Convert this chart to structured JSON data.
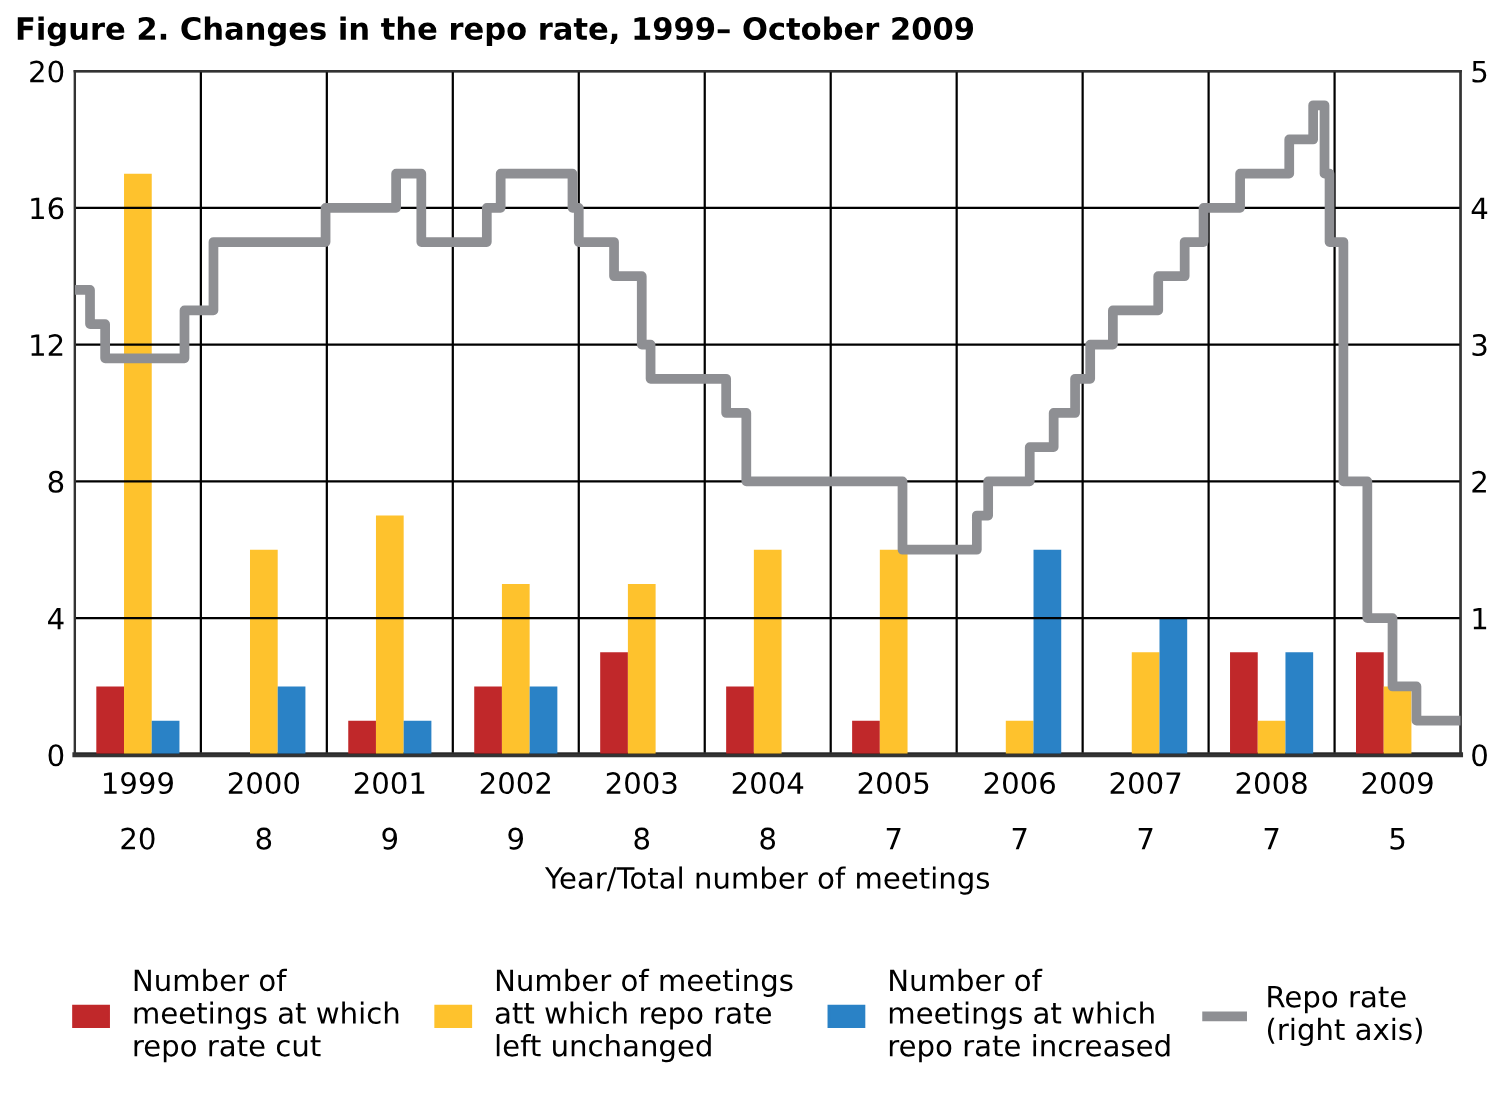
{
  "chart_data": {
    "type": "bar",
    "title": "Figure 2. Changes in the repo rate, 1999– October 2009",
    "xlabel": "Year/Total number of meetings",
    "x": [
      1999,
      2000,
      2001,
      2002,
      2003,
      2004,
      2005,
      2006,
      2007,
      2008,
      2009
    ],
    "series": [
      {
        "name": "Number of\nmeetings at which\nrepo rate cut",
        "color": "#c0282a",
        "values": [
          2,
          0,
          1,
          2,
          3,
          2,
          1,
          0,
          0,
          3,
          3
        ]
      },
      {
        "name": "Number of meetings\natt which repo rate\nleft unchanged",
        "color": "#fec22d",
        "values": [
          17,
          6,
          7,
          5,
          5,
          6,
          6,
          1,
          3,
          1,
          2
        ]
      },
      {
        "name": "Number of\nmeetings at which\nrepo rate increased",
        "color": "#2a82c6",
        "values": [
          1,
          2,
          1,
          2,
          0,
          0,
          0,
          6,
          4,
          3,
          0
        ]
      },
      {
        "name": "Repo rate\n(right axis)",
        "color": "#8e8f93",
        "type": "step",
        "axis": "y2",
        "x": [
          1998.5,
          1998.62,
          1998.74,
          1999.37,
          1999.6,
          2000.49,
          2001.05,
          2001.25,
          2001.77,
          2001.88,
          2002.45,
          2002.5,
          2002.78,
          2003.0,
          2003.07,
          2003.67,
          2003.83,
          2005.07,
          2005.66,
          2005.75,
          2006.08,
          2006.27,
          2006.44,
          2006.56,
          2006.74,
          2007.1,
          2007.31,
          2007.46,
          2007.75,
          2008.14,
          2008.33,
          2008.42,
          2008.46,
          2008.57,
          2008.76,
          2008.96,
          2009.15,
          2009.5
        ],
        "values": [
          3.4,
          3.15,
          2.9,
          3.25,
          3.75,
          4.0,
          4.25,
          3.75,
          4.0,
          4.25,
          4.0,
          3.75,
          3.5,
          3.0,
          2.75,
          2.5,
          2.0,
          1.5,
          1.75,
          2.0,
          2.25,
          2.5,
          2.75,
          3.0,
          3.25,
          3.5,
          3.75,
          4.0,
          4.25,
          4.5,
          4.75,
          4.25,
          3.75,
          2.0,
          1.0,
          0.5,
          0.25,
          0.25
        ]
      }
    ],
    "xlim": [
      1998.5,
      2009.5
    ],
    "xticks": [
      1999,
      2000,
      2001,
      2002,
      2003,
      2004,
      2005,
      2006,
      2007,
      2008,
      2009
    ],
    "annotations": [
      "20",
      "8",
      "9",
      "9",
      "8",
      "8",
      "7",
      "7",
      "7",
      "7",
      "5"
    ],
    "ylim": [
      0,
      20
    ],
    "yticks": [
      0,
      4,
      8,
      12,
      16,
      20
    ],
    "y2lim": [
      0,
      5
    ],
    "y2ticks": [
      0,
      1,
      2,
      3,
      4,
      5
    ],
    "ref_lines": [
      {
        "axis": "x",
        "value": 1999.5,
        "color": "#000000"
      },
      {
        "axis": "x",
        "value": 2000.5,
        "color": "#000000"
      },
      {
        "axis": "x",
        "value": 2001.5,
        "color": "#000000"
      },
      {
        "axis": "x",
        "value": 2002.5,
        "color": "#000000"
      },
      {
        "axis": "x",
        "value": 2003.5,
        "color": "#000000"
      },
      {
        "axis": "x",
        "value": 2004.5,
        "color": "#000000"
      },
      {
        "axis": "x",
        "value": 2005.5,
        "color": "#000000"
      },
      {
        "axis": "x",
        "value": 2006.5,
        "color": "#000000"
      },
      {
        "axis": "x",
        "value": 2007.5,
        "color": "#000000"
      },
      {
        "axis": "x",
        "value": 2008.5,
        "color": "#000000"
      }
    ],
    "grid": "y",
    "legend": "bottom"
  }
}
